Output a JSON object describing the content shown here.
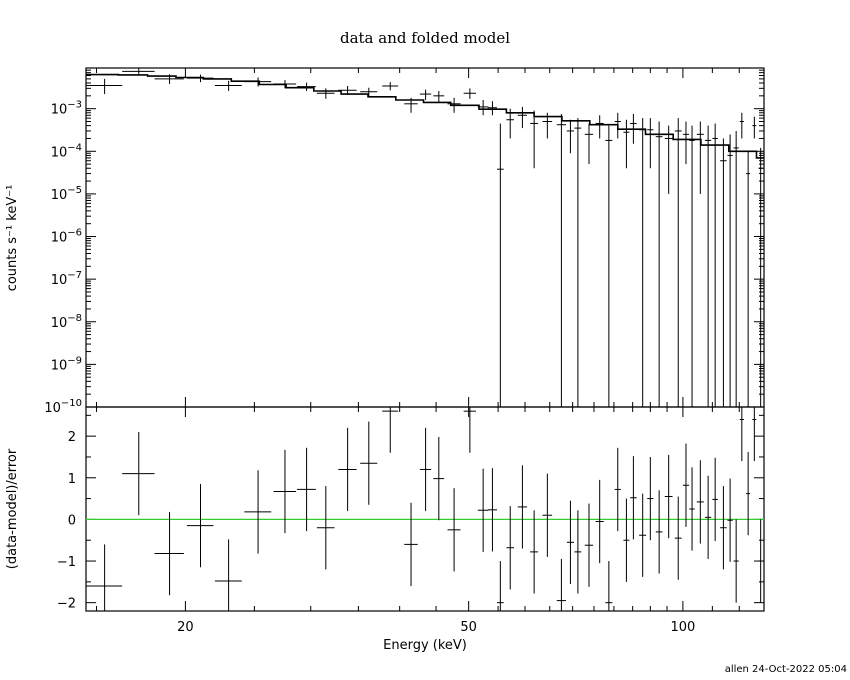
{
  "chart_data": {
    "type": "scatter",
    "title": "data and folded model",
    "footer": "allen 24-Oct-2022 05:04",
    "xlabel": "Energy (keV)",
    "xscale": "log",
    "xlim": [
      14.5,
      130
    ],
    "xticks": [
      {
        "value": 20,
        "label": "20"
      },
      {
        "value": 50,
        "label": "50"
      },
      {
        "value": 100,
        "label": "100"
      }
    ],
    "colors": {
      "data": "#000000",
      "model": "#000000",
      "zero_line": "#33cc33"
    },
    "top_panel": {
      "ylabel": "counts s⁻¹ keV⁻¹",
      "yscale": "log",
      "ylim": [
        1e-10,
        0.009
      ],
      "yticks": [
        {
          "exp": -3,
          "base": "10",
          "sup": "−3"
        },
        {
          "exp": -4,
          "base": "10",
          "sup": "−4"
        },
        {
          "exp": -5,
          "base": "10",
          "sup": "−5"
        },
        {
          "exp": -6,
          "base": "10",
          "sup": "−6"
        },
        {
          "exp": -7,
          "base": "10",
          "sup": "−7"
        },
        {
          "exp": -8,
          "base": "10",
          "sup": "−8"
        },
        {
          "exp": -9,
          "base": "10",
          "sup": "−9"
        },
        {
          "exp": -10,
          "base": "10",
          "sup": "−10"
        }
      ],
      "model": {
        "x": [
          14.5,
          16.1,
          17.7,
          19.4,
          21.2,
          23.2,
          25.4,
          27.7,
          30.3,
          33.1,
          36.1,
          39.5,
          43.2,
          47.2,
          51.7,
          56.5,
          61.8,
          67.6,
          74.0,
          81.0,
          88.6,
          96.9,
          106.0,
          116.0,
          126.9,
          130.0
        ],
        "y": [
          0.0063,
          0.0062,
          0.0058,
          0.0054,
          0.005,
          0.0044,
          0.0037,
          0.0031,
          0.0026,
          0.0022,
          0.0019,
          0.0016,
          0.0014,
          0.0012,
          0.00097,
          0.0008,
          0.00065,
          0.00052,
          0.00042,
          0.00033,
          0.00025,
          0.00019,
          0.00014,
          0.0001,
          7e-05,
          4e-05
        ]
      },
      "points": [
        {
          "x": 15.4,
          "xerr": 0.9,
          "y": 0.0035,
          "lo": 0.0022,
          "hi": 0.005
        },
        {
          "x": 17.2,
          "xerr": 0.9,
          "y": 0.0075,
          "lo": 0.006,
          "hi": 0.009
        },
        {
          "x": 19.0,
          "xerr": 0.9,
          "y": 0.005,
          "lo": 0.0038,
          "hi": 0.0064
        },
        {
          "x": 21.0,
          "xerr": 0.9,
          "y": 0.0052,
          "lo": 0.0042,
          "hi": 0.0063
        },
        {
          "x": 23.0,
          "xerr": 1.0,
          "y": 0.0035,
          "lo": 0.0026,
          "hi": 0.0045
        },
        {
          "x": 25.3,
          "xerr": 1.1,
          "y": 0.0043,
          "lo": 0.0033,
          "hi": 0.0054
        },
        {
          "x": 27.6,
          "xerr": 1.0,
          "y": 0.0038,
          "lo": 0.003,
          "hi": 0.0047
        },
        {
          "x": 29.6,
          "xerr": 0.9,
          "y": 0.0033,
          "lo": 0.0026,
          "hi": 0.0041
        },
        {
          "x": 31.5,
          "xerr": 0.9,
          "y": 0.0023,
          "lo": 0.0017,
          "hi": 0.003
        },
        {
          "x": 33.8,
          "xerr": 1.0,
          "y": 0.0027,
          "lo": 0.0021,
          "hi": 0.0034
        },
        {
          "x": 36.2,
          "xerr": 1.0,
          "y": 0.0025,
          "lo": 0.0019,
          "hi": 0.0031
        },
        {
          "x": 38.8,
          "xerr": 1.0,
          "y": 0.0034,
          "lo": 0.0027,
          "hi": 0.0042
        },
        {
          "x": 41.5,
          "xerr": 0.9,
          "y": 0.0013,
          "lo": 0.0008,
          "hi": 0.0018
        },
        {
          "x": 43.5,
          "xerr": 0.8,
          "y": 0.0022,
          "lo": 0.0016,
          "hi": 0.0028
        },
        {
          "x": 45.4,
          "xerr": 0.8,
          "y": 0.002,
          "lo": 0.0014,
          "hi": 0.0026
        },
        {
          "x": 47.7,
          "xerr": 1.0,
          "y": 0.0013,
          "lo": 0.0008,
          "hi": 0.0018
        },
        {
          "x": 50.2,
          "xerr": 1.0,
          "y": 0.0023,
          "lo": 0.0017,
          "hi": 0.003
        },
        {
          "x": 52.4,
          "xerr": 0.9,
          "y": 0.0011,
          "lo": 0.0007,
          "hi": 0.0016
        },
        {
          "x": 54.0,
          "xerr": 0.8,
          "y": 0.00105,
          "lo": 0.0007,
          "hi": 0.0015
        },
        {
          "x": 55.4,
          "xerr": 0.6,
          "y": 3.8e-05,
          "lo": 1e-10,
          "hi": 0.00045
        },
        {
          "x": 57.2,
          "xerr": 0.7,
          "y": 0.00055,
          "lo": 0.0002,
          "hi": 0.001
        },
        {
          "x": 59.5,
          "xerr": 0.9,
          "y": 0.0007,
          "lo": 0.00035,
          "hi": 0.0011
        },
        {
          "x": 61.8,
          "xerr": 0.8,
          "y": 0.00045,
          "lo": 4e-05,
          "hi": 0.0009
        },
        {
          "x": 64.5,
          "xerr": 1.0,
          "y": 0.0005,
          "lo": 0.0002,
          "hi": 0.0008
        },
        {
          "x": 67.5,
          "xerr": 1.0,
          "y": 0.00042,
          "lo": 1e-10,
          "hi": 0.00075
        },
        {
          "x": 69.5,
          "xerr": 0.8,
          "y": 0.0003,
          "lo": 9e-05,
          "hi": 0.00055
        },
        {
          "x": 71.2,
          "xerr": 0.8,
          "y": 0.00035,
          "lo": 1e-10,
          "hi": 0.0006
        },
        {
          "x": 73.8,
          "xerr": 1.0,
          "y": 0.00025,
          "lo": 5e-05,
          "hi": 0.00045
        },
        {
          "x": 76.4,
          "xerr": 1.0,
          "y": 0.00045,
          "lo": 0.0002,
          "hi": 0.0007
        },
        {
          "x": 78.7,
          "xerr": 0.9,
          "y": 0.00018,
          "lo": 1e-10,
          "hi": 0.0004
        },
        {
          "x": 81.0,
          "xerr": 0.8,
          "y": 0.0005,
          "lo": 0.0002,
          "hi": 0.0008
        },
        {
          "x": 83.3,
          "xerr": 0.8,
          "y": 0.00028,
          "lo": 4e-05,
          "hi": 0.00055
        },
        {
          "x": 85.2,
          "xerr": 0.9,
          "y": 0.00045,
          "lo": 0.00015,
          "hi": 0.00075
        },
        {
          "x": 87.8,
          "xerr": 1.0,
          "y": 0.00032,
          "lo": 1e-10,
          "hi": 0.0006
        },
        {
          "x": 90.0,
          "xerr": 0.9,
          "y": 0.00032,
          "lo": 4e-05,
          "hi": 0.0006
        },
        {
          "x": 92.6,
          "xerr": 1.0,
          "y": 0.00022,
          "lo": 1e-10,
          "hi": 0.0005
        },
        {
          "x": 95.5,
          "xerr": 1.2,
          "y": 0.0002,
          "lo": 1e-05,
          "hi": 0.0004
        },
        {
          "x": 98.5,
          "xerr": 1.1,
          "y": 0.0003,
          "lo": 1e-10,
          "hi": 0.0006
        },
        {
          "x": 101.0,
          "xerr": 1.0,
          "y": 0.00025,
          "lo": 5e-05,
          "hi": 0.0005
        },
        {
          "x": 103.0,
          "xerr": 0.9,
          "y": 0.00018,
          "lo": 1e-10,
          "hi": 0.0004
        },
        {
          "x": 105.8,
          "xerr": 1.2,
          "y": 0.00025,
          "lo": 1e-05,
          "hi": 0.0005
        },
        {
          "x": 108.5,
          "xerr": 1.1,
          "y": 0.00018,
          "lo": 1e-10,
          "hi": 0.0004
        },
        {
          "x": 111.0,
          "xerr": 1.0,
          "y": 0.0002,
          "lo": 1e-10,
          "hi": 0.00045
        },
        {
          "x": 114.0,
          "xerr": 1.2,
          "y": 6e-05,
          "lo": 1e-10,
          "hi": 0.0002
        },
        {
          "x": 116.5,
          "xerr": 1.0,
          "y": 8e-05,
          "lo": 1e-10,
          "hi": 0.00025
        },
        {
          "x": 118.8,
          "xerr": 1.0,
          "y": 0.00012,
          "lo": 1e-10,
          "hi": 0.0003
        },
        {
          "x": 121.0,
          "xerr": 0.8,
          "y": 0.0005,
          "lo": 0.0002,
          "hi": 0.0008
        },
        {
          "x": 123.5,
          "xerr": 0.8,
          "y": 3e-05,
          "lo": 1e-10,
          "hi": 0.0001
        },
        {
          "x": 126.0,
          "xerr": 0.8,
          "y": 0.0004,
          "lo": 0.0002,
          "hi": 0.00065
        },
        {
          "x": 128.6,
          "xerr": 0.9,
          "y": 4e-05,
          "lo": 1e-10,
          "hi": 0.00012
        }
      ]
    },
    "bottom_panel": {
      "ylabel": "(data-model)/error",
      "ylim": [
        -2.2,
        2.7
      ],
      "yticks": [
        -2,
        -1,
        0,
        1,
        2
      ],
      "ytick_labels": [
        "−2",
        "−1",
        "0",
        "1",
        "2"
      ],
      "zero_line": 0,
      "points": [
        {
          "x": 15.4,
          "xerr": 0.9,
          "y": -1.6,
          "err": 1.0
        },
        {
          "x": 17.2,
          "xerr": 0.9,
          "y": 1.1,
          "err": 1.0
        },
        {
          "x": 19.0,
          "xerr": 0.9,
          "y": -0.82,
          "err": 1.0
        },
        {
          "x": 21.0,
          "xerr": 0.9,
          "y": -0.15,
          "err": 1.0
        },
        {
          "x": 23.0,
          "xerr": 1.0,
          "y": -1.48,
          "err": 1.0
        },
        {
          "x": 25.3,
          "xerr": 1.1,
          "y": 0.18,
          "err": 1.0
        },
        {
          "x": 27.6,
          "xerr": 1.0,
          "y": 0.67,
          "err": 1.0
        },
        {
          "x": 29.6,
          "xerr": 0.9,
          "y": 0.72,
          "err": 1.0
        },
        {
          "x": 31.5,
          "xerr": 0.9,
          "y": -0.2,
          "err": 1.0
        },
        {
          "x": 33.8,
          "xerr": 1.0,
          "y": 1.2,
          "err": 1.0
        },
        {
          "x": 36.2,
          "xerr": 1.0,
          "y": 1.35,
          "err": 1.0
        },
        {
          "x": 38.8,
          "xerr": 1.0,
          "y": 2.6,
          "err": 1.0
        },
        {
          "x": 41.5,
          "xerr": 0.9,
          "y": -0.6,
          "err": 1.0
        },
        {
          "x": 43.5,
          "xerr": 0.8,
          "y": 1.2,
          "err": 1.0
        },
        {
          "x": 45.4,
          "xerr": 0.8,
          "y": 0.98,
          "err": 1.0
        },
        {
          "x": 47.7,
          "xerr": 1.0,
          "y": -0.25,
          "err": 1.0
        },
        {
          "x": 50.2,
          "xerr": 1.0,
          "y": 2.6,
          "err": 1.0
        },
        {
          "x": 52.4,
          "xerr": 0.9,
          "y": 0.22,
          "err": 1.0
        },
        {
          "x": 54.0,
          "xerr": 0.8,
          "y": 0.23,
          "err": 1.0
        },
        {
          "x": 55.4,
          "xerr": 0.6,
          "y": -2.0,
          "err": 1.0
        },
        {
          "x": 57.2,
          "xerr": 0.7,
          "y": -0.68,
          "err": 1.0
        },
        {
          "x": 59.5,
          "xerr": 0.9,
          "y": 0.3,
          "err": 1.0
        },
        {
          "x": 61.8,
          "xerr": 0.8,
          "y": -0.78,
          "err": 1.0
        },
        {
          "x": 64.5,
          "xerr": 1.0,
          "y": 0.1,
          "err": 1.0
        },
        {
          "x": 67.5,
          "xerr": 1.0,
          "y": -1.95,
          "err": 1.0
        },
        {
          "x": 69.5,
          "xerr": 0.8,
          "y": -0.55,
          "err": 1.0
        },
        {
          "x": 71.2,
          "xerr": 0.8,
          "y": -0.78,
          "err": 1.0
        },
        {
          "x": 73.8,
          "xerr": 1.0,
          "y": -0.62,
          "err": 1.0
        },
        {
          "x": 76.4,
          "xerr": 1.0,
          "y": -0.05,
          "err": 1.0
        },
        {
          "x": 78.7,
          "xerr": 0.9,
          "y": -2.0,
          "err": 1.0
        },
        {
          "x": 81.0,
          "xerr": 0.8,
          "y": 0.72,
          "err": 1.0
        },
        {
          "x": 83.3,
          "xerr": 0.8,
          "y": -0.5,
          "err": 1.0
        },
        {
          "x": 85.2,
          "xerr": 0.9,
          "y": 0.52,
          "err": 1.0
        },
        {
          "x": 87.8,
          "xerr": 1.0,
          "y": -0.38,
          "err": 1.0
        },
        {
          "x": 90.0,
          "xerr": 0.9,
          "y": 0.5,
          "err": 1.0
        },
        {
          "x": 92.6,
          "xerr": 1.0,
          "y": -0.3,
          "err": 1.0
        },
        {
          "x": 95.5,
          "xerr": 1.2,
          "y": 0.55,
          "err": 1.0
        },
        {
          "x": 98.5,
          "xerr": 1.1,
          "y": -0.45,
          "err": 1.0
        },
        {
          "x": 101.0,
          "xerr": 1.0,
          "y": 0.82,
          "err": 1.0
        },
        {
          "x": 103.0,
          "xerr": 0.9,
          "y": 0.25,
          "err": 1.0
        },
        {
          "x": 105.8,
          "xerr": 1.2,
          "y": 0.42,
          "err": 1.0
        },
        {
          "x": 108.5,
          "xerr": 1.1,
          "y": 0.05,
          "err": 1.0
        },
        {
          "x": 111.0,
          "xerr": 1.0,
          "y": 0.48,
          "err": 1.0
        },
        {
          "x": 114.0,
          "xerr": 1.2,
          "y": -0.2,
          "err": 1.0
        },
        {
          "x": 116.5,
          "xerr": 1.0,
          "y": -0.02,
          "err": 1.0
        },
        {
          "x": 118.8,
          "xerr": 1.0,
          "y": -1.0,
          "err": 1.0
        },
        {
          "x": 121.0,
          "xerr": 0.8,
          "y": 2.4,
          "err": 1.0
        },
        {
          "x": 123.5,
          "xerr": 0.8,
          "y": 0.62,
          "err": 1.0
        },
        {
          "x": 126.0,
          "xerr": 0.8,
          "y": 2.4,
          "err": 1.0
        },
        {
          "x": 128.6,
          "xerr": 0.9,
          "y": -1.0,
          "err": 1.0
        }
      ]
    }
  }
}
